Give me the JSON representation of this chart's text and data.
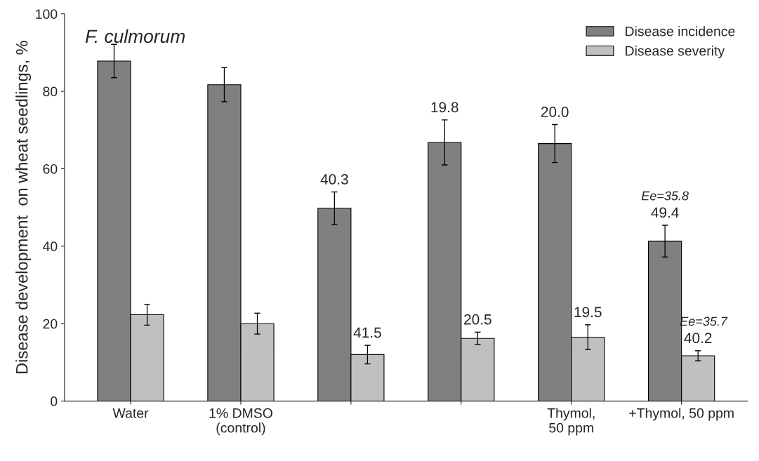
{
  "chart_data": {
    "type": "bar",
    "ylabel": "Disease development  on wheat seedlings, %",
    "categories": [
      "Water",
      "1% DMSO\n(control)",
      null,
      null,
      "Thymol,\n50 ppm",
      "+Thymol, 50 ppm"
    ],
    "series": [
      {
        "name": "Disease incidence",
        "color": "#808080",
        "values": [
          87.8,
          81.7,
          49.8,
          66.8,
          66.5,
          41.3
        ],
        "errors": [
          4.3,
          4.4,
          4.2,
          5.8,
          4.9,
          4.1
        ]
      },
      {
        "name": "Disease severity",
        "color": "#c0c0c0",
        "values": [
          22.3,
          20.0,
          12.0,
          16.2,
          16.5,
          11.7
        ],
        "errors": [
          2.7,
          2.7,
          2.4,
          1.6,
          3.2,
          1.3
        ]
      }
    ],
    "annotations": [
      "F. culmorum",
      "40.3",
      "41.5",
      "19.8",
      "20.5",
      "20.0",
      "19.5",
      "49.4",
      "Ee=35.8",
      "40.2",
      "Ee=35.7"
    ],
    "ylim": [
      0,
      100
    ],
    "yticks": [
      0,
      20,
      40,
      60,
      80,
      100
    ],
    "legend": "top right",
    "grid": false
  }
}
